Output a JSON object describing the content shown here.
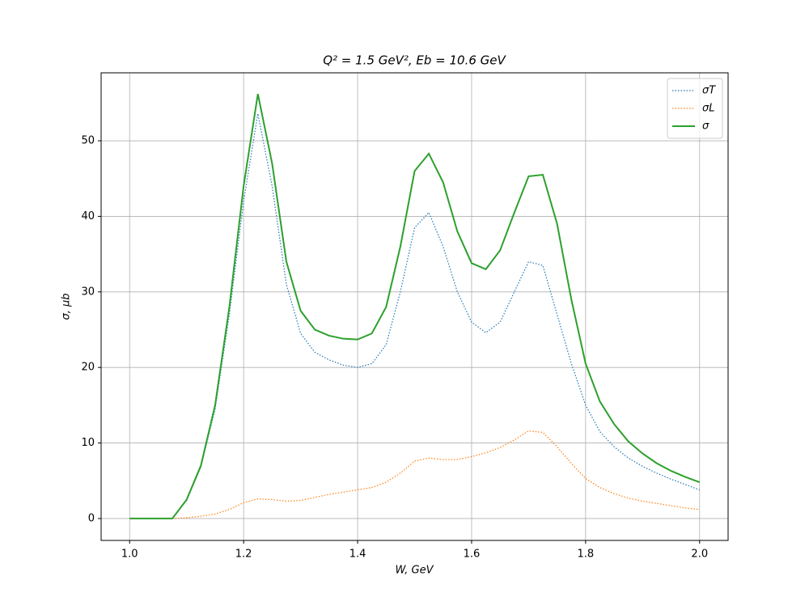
{
  "chart_data": {
    "type": "line",
    "title": "Q² = 1.5 GeV²,  Eb = 10.6 GeV",
    "x_label": "W, GeV",
    "y_label": "σ, μb",
    "x": [
      1.0,
      1.025,
      1.05,
      1.075,
      1.1,
      1.125,
      1.15,
      1.175,
      1.2,
      1.225,
      1.25,
      1.275,
      1.3,
      1.325,
      1.35,
      1.375,
      1.4,
      1.425,
      1.45,
      1.475,
      1.5,
      1.525,
      1.55,
      1.575,
      1.6,
      1.625,
      1.65,
      1.675,
      1.7,
      1.725,
      1.75,
      1.775,
      1.8,
      1.825,
      1.85,
      1.875,
      1.9,
      1.925,
      1.95,
      1.975,
      2.0
    ],
    "series": [
      {
        "name": "σT",
        "color": "#1f77b4",
        "linestyle": "dotted",
        "values": [
          0,
          0,
          0,
          0,
          2.4,
          6.8,
          14.5,
          27,
          42,
          53.6,
          44,
          31,
          24.5,
          22,
          21,
          20.3,
          20,
          20.5,
          23,
          30,
          38.5,
          40.5,
          36,
          30,
          26,
          24.6,
          26,
          30,
          34,
          33.5,
          27,
          20.5,
          15,
          11.5,
          9.5,
          8,
          6.9,
          6,
          5.2,
          4.5,
          3.8
        ]
      },
      {
        "name": "σL",
        "color": "#ff7f0e",
        "linestyle": "dotted",
        "values": [
          0,
          0,
          0,
          0,
          0.1,
          0.3,
          0.6,
          1.2,
          2.1,
          2.6,
          2.5,
          2.3,
          2.4,
          2.8,
          3.2,
          3.5,
          3.8,
          4.1,
          4.8,
          6,
          7.6,
          8,
          7.8,
          7.8,
          8.2,
          8.7,
          9.4,
          10.4,
          11.6,
          11.4,
          9.5,
          7.3,
          5.3,
          4.1,
          3.3,
          2.7,
          2.3,
          2,
          1.7,
          1.4,
          1.2
        ]
      },
      {
        "name": "σ",
        "color": "#2ca02c",
        "linestyle": "solid",
        "values": [
          0,
          0,
          0,
          0,
          2.5,
          7,
          15,
          28,
          44,
          56.2,
          47,
          34,
          27.5,
          25,
          24.2,
          23.8,
          23.7,
          24.5,
          28,
          36,
          46,
          48.3,
          44.5,
          38,
          33.8,
          33,
          35.5,
          40.5,
          45.3,
          45.5,
          39,
          29,
          20.5,
          15.5,
          12.5,
          10.2,
          8.6,
          7.3,
          6.3,
          5.5,
          4.8
        ]
      }
    ],
    "xlim": [
      0.95,
      2.05
    ],
    "ylim": [
      -2.9,
      59
    ],
    "xticks": [
      {
        "value": 1.0,
        "label": "1.0"
      },
      1.2,
      1.4,
      1.6,
      1.8,
      {
        "value": 2.0,
        "label": "2.0"
      }
    ],
    "yticks": [
      0,
      10,
      20,
      30,
      40,
      50
    ],
    "grid": true,
    "legend": "upper right"
  }
}
